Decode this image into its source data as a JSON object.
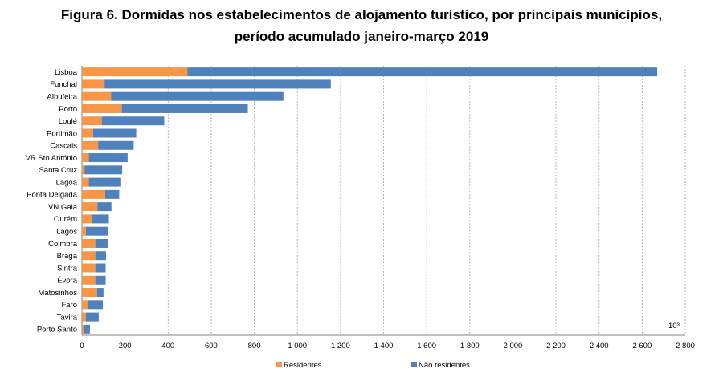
{
  "title_line1": "Figura 6. Dormidas nos estabelecimentos de alojamento turístico, por principais municípios,",
  "title_line2": "período acumulado janeiro-março 2019",
  "chart_data": {
    "type": "bar",
    "orientation": "horizontal",
    "stacked": true,
    "unit_label": "10³",
    "categories": [
      "Lisboa",
      "Funchal",
      "Albufeira",
      "Porto",
      "Loulé",
      "Portimão",
      "Cascais",
      "VR Sto António",
      "Santa Cruz",
      "Lagoa",
      "Ponta Delgada",
      "VN Gaia",
      "Ourém",
      "Lagos",
      "Coimbra",
      "Braga",
      "Sintra",
      "Évora",
      "Matosinhos",
      "Faro",
      "Tavira",
      "Porto Santo"
    ],
    "series": [
      {
        "name": "Residentes",
        "color": "#f79646",
        "values": [
          490,
          105,
          135,
          185,
          92,
          52,
          75,
          32,
          12,
          32,
          108,
          72,
          47,
          18,
          62,
          62,
          62,
          62,
          70,
          27,
          18,
          7
        ]
      },
      {
        "name": "Não residentes",
        "color": "#4f81bd",
        "values": [
          2180,
          1050,
          800,
          585,
          290,
          200,
          165,
          180,
          175,
          150,
          65,
          65,
          78,
          102,
          60,
          50,
          48,
          48,
          30,
          70,
          60,
          30
        ]
      }
    ],
    "xlim": [
      0,
      2800
    ],
    "xticks": [
      0,
      200,
      400,
      600,
      800,
      1000,
      1200,
      1400,
      1600,
      1800,
      2000,
      2200,
      2400,
      2600,
      2800
    ],
    "xtick_labels": [
      "0",
      "200",
      "400",
      "600",
      "800",
      "1 000",
      "1 200",
      "1 400",
      "1 600",
      "1 800",
      "2 000",
      "2 200",
      "2 400",
      "2 600",
      "2 800"
    ],
    "grid": "vertical dashed",
    "legend_position": "bottom"
  }
}
